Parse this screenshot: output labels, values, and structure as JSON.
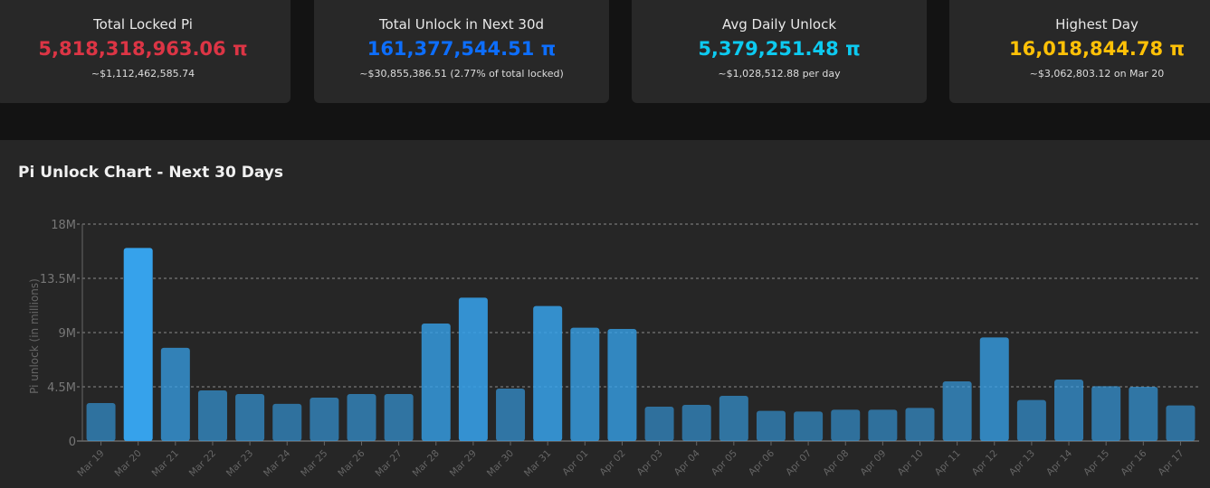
{
  "cards": [
    {
      "title": "Total Locked Pi",
      "value": "5,818,318,963.06 π",
      "sub": "~$1,112,462,585.74",
      "color": "#dc3545"
    },
    {
      "title": "Total Unlock in Next 30d",
      "value": "161,377,544.51 π",
      "sub": "~$30,855,386.51 (2.77% of total locked)",
      "color": "#0d6efd"
    },
    {
      "title": "Avg Daily Unlock",
      "value": "5,379,251.48 π",
      "sub": "~$1,028,512.88 per day",
      "color": "#0dcaf0"
    },
    {
      "title": "Highest Day",
      "value": "16,018,844.78 π",
      "sub": "~$3,062,803.12 on Mar 20",
      "color": "#ffc107"
    }
  ],
  "chart_title": "Pi Unlock Chart - Next 30 Days",
  "chart_data": {
    "type": "bar",
    "title": "Pi Unlock Chart - Next 30 Days",
    "xlabel": "",
    "ylabel": "Pi unlock (in millions)",
    "ylim": [
      0,
      18000000
    ],
    "yticks": [
      {
        "v": 0,
        "label": "0"
      },
      {
        "v": 4500000,
        "label": "4.5M"
      },
      {
        "v": 9000000,
        "label": "9M"
      },
      {
        "v": 13500000,
        "label": "13.5M"
      },
      {
        "v": 18000000,
        "label": "18M"
      }
    ],
    "grid": true,
    "bar_color": "#36a2eb",
    "categories": [
      "Mar 19",
      "Mar 20",
      "Mar 21",
      "Mar 22",
      "Mar 23",
      "Mar 24",
      "Mar 25",
      "Mar 26",
      "Mar 27",
      "Mar 28",
      "Mar 29",
      "Mar 30",
      "Mar 31",
      "Apr 01",
      "Apr 02",
      "Apr 03",
      "Apr 04",
      "Apr 05",
      "Apr 06",
      "Apr 07",
      "Apr 08",
      "Apr 09",
      "Apr 10",
      "Apr 11",
      "Apr 12",
      "Apr 13",
      "Apr 14",
      "Apr 15",
      "Apr 16",
      "Apr 17"
    ],
    "values": [
      3150000,
      16018844.78,
      7730000,
      4200000,
      3900000,
      3080000,
      3600000,
      3900000,
      3900000,
      9750000,
      11900000,
      4350000,
      11200000,
      9400000,
      9300000,
      2850000,
      3000000,
      3750000,
      2500000,
      2450000,
      2600000,
      2600000,
      2750000,
      4950000,
      8600000,
      3400000,
      5100000,
      4550000,
      4500000,
      2950000
    ]
  }
}
